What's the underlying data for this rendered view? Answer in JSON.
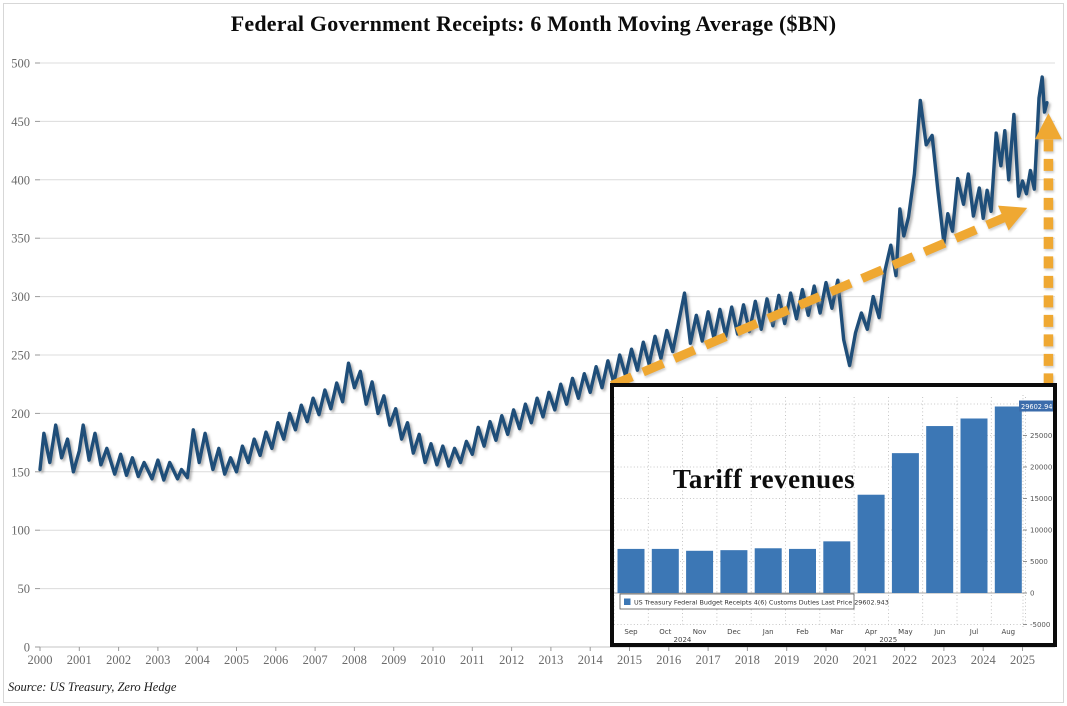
{
  "header": {
    "title": "Federal Government Receipts: 6 Month Moving Average ($BN)"
  },
  "source": {
    "label": "Source: US Treasury, Zero Hedge"
  },
  "colors": {
    "line": "#1f4e79",
    "arrow": "#efa832",
    "bar": "#3c77b5",
    "grid_main": "#dcdcdc",
    "grid_inset": "#b5b5b5",
    "axis_text": "#6a6a6a",
    "badge_bg": "#3b6cab",
    "badge_text": "#ffffff"
  },
  "chart_data": [
    {
      "type": "line",
      "title": "Federal Government Receipts: 6 Month Moving Average ($BN)",
      "xlabel": "",
      "ylabel": "",
      "ylim": [
        0,
        500
      ],
      "yticks": [
        0,
        50,
        100,
        150,
        200,
        250,
        300,
        350,
        400,
        450,
        500
      ],
      "xticks": [
        2000,
        2001,
        2002,
        2003,
        2004,
        2005,
        2006,
        2007,
        2008,
        2009,
        2010,
        2011,
        2012,
        2013,
        2014,
        2015,
        2016,
        2017,
        2018,
        2019,
        2020,
        2021,
        2022,
        2023,
        2024,
        2025
      ],
      "grid": "horizontal",
      "legend_position": "none",
      "series": [
        {
          "name": "receipts_6m_moving_avg",
          "color": "#1f4e79",
          "points": [
            [
              2000.0,
              152
            ],
            [
              2000.1,
              183
            ],
            [
              2000.25,
              158
            ],
            [
              2000.4,
              190
            ],
            [
              2000.55,
              162
            ],
            [
              2000.7,
              178
            ],
            [
              2000.85,
              150
            ],
            [
              2001.0,
              168
            ],
            [
              2001.1,
              190
            ],
            [
              2001.25,
              160
            ],
            [
              2001.4,
              183
            ],
            [
              2001.55,
              156
            ],
            [
              2001.7,
              170
            ],
            [
              2001.9,
              148
            ],
            [
              2002.05,
              165
            ],
            [
              2002.2,
              147
            ],
            [
              2002.35,
              162
            ],
            [
              2002.5,
              146
            ],
            [
              2002.65,
              158
            ],
            [
              2002.85,
              144
            ],
            [
              2003.0,
              160
            ],
            [
              2003.15,
              143
            ],
            [
              2003.3,
              158
            ],
            [
              2003.5,
              144
            ],
            [
              2003.6,
              152
            ],
            [
              2003.75,
              145
            ],
            [
              2003.9,
              186
            ],
            [
              2004.05,
              158
            ],
            [
              2004.2,
              183
            ],
            [
              2004.4,
              152
            ],
            [
              2004.55,
              170
            ],
            [
              2004.7,
              148
            ],
            [
              2004.85,
              162
            ],
            [
              2005.0,
              150
            ],
            [
              2005.15,
              172
            ],
            [
              2005.3,
              158
            ],
            [
              2005.45,
              178
            ],
            [
              2005.6,
              164
            ],
            [
              2005.75,
              184
            ],
            [
              2005.9,
              170
            ],
            [
              2006.05,
              192
            ],
            [
              2006.2,
              178
            ],
            [
              2006.35,
              200
            ],
            [
              2006.5,
              186
            ],
            [
              2006.65,
              207
            ],
            [
              2006.8,
              193
            ],
            [
              2006.95,
              213
            ],
            [
              2007.1,
              199
            ],
            [
              2007.25,
              220
            ],
            [
              2007.4,
              204
            ],
            [
              2007.55,
              226
            ],
            [
              2007.7,
              210
            ],
            [
              2007.85,
              243
            ],
            [
              2008.0,
              222
            ],
            [
              2008.15,
              236
            ],
            [
              2008.3,
              208
            ],
            [
              2008.45,
              227
            ],
            [
              2008.6,
              200
            ],
            [
              2008.75,
              215
            ],
            [
              2008.9,
              190
            ],
            [
              2009.05,
              204
            ],
            [
              2009.2,
              178
            ],
            [
              2009.35,
              192
            ],
            [
              2009.5,
              166
            ],
            [
              2009.65,
              182
            ],
            [
              2009.8,
              158
            ],
            [
              2009.95,
              174
            ],
            [
              2010.1,
              156
            ],
            [
              2010.25,
              172
            ],
            [
              2010.4,
              155
            ],
            [
              2010.55,
              170
            ],
            [
              2010.7,
              158
            ],
            [
              2010.85,
              176
            ],
            [
              2011.0,
              165
            ],
            [
              2011.15,
              188
            ],
            [
              2011.3,
              172
            ],
            [
              2011.45,
              193
            ],
            [
              2011.6,
              177
            ],
            [
              2011.75,
              198
            ],
            [
              2011.9,
              182
            ],
            [
              2012.05,
              203
            ],
            [
              2012.2,
              187
            ],
            [
              2012.35,
              208
            ],
            [
              2012.5,
              192
            ],
            [
              2012.65,
              213
            ],
            [
              2012.8,
              197
            ],
            [
              2012.95,
              218
            ],
            [
              2013.1,
              203
            ],
            [
              2013.25,
              225
            ],
            [
              2013.4,
              208
            ],
            [
              2013.55,
              230
            ],
            [
              2013.7,
              213
            ],
            [
              2013.85,
              234
            ],
            [
              2014.0,
              218
            ],
            [
              2014.15,
              240
            ],
            [
              2014.3,
              222
            ],
            [
              2014.45,
              245
            ],
            [
              2014.6,
              226
            ],
            [
              2014.75,
              250
            ],
            [
              2014.9,
              232
            ],
            [
              2015.05,
              255
            ],
            [
              2015.2,
              237
            ],
            [
              2015.35,
              261
            ],
            [
              2015.5,
              242
            ],
            [
              2015.65,
              266
            ],
            [
              2015.8,
              247
            ],
            [
              2015.95,
              271
            ],
            [
              2016.1,
              253
            ],
            [
              2016.25,
              278
            ],
            [
              2016.4,
              303
            ],
            [
              2016.55,
              260
            ],
            [
              2016.7,
              284
            ],
            [
              2016.85,
              262
            ],
            [
              2017.0,
              287
            ],
            [
              2017.15,
              264
            ],
            [
              2017.3,
              289
            ],
            [
              2017.45,
              266
            ],
            [
              2017.6,
              291
            ],
            [
              2017.75,
              268
            ],
            [
              2017.9,
              293
            ],
            [
              2018.05,
              270
            ],
            [
              2018.2,
              296
            ],
            [
              2018.35,
              272
            ],
            [
              2018.5,
              298
            ],
            [
              2018.65,
              275
            ],
            [
              2018.8,
              301
            ],
            [
              2018.95,
              277
            ],
            [
              2019.1,
              303
            ],
            [
              2019.25,
              281
            ],
            [
              2019.4,
              306
            ],
            [
              2019.55,
              284
            ],
            [
              2019.7,
              309
            ],
            [
              2019.85,
              286
            ],
            [
              2020.0,
              312
            ],
            [
              2020.15,
              290
            ],
            [
              2020.3,
              314
            ],
            [
              2020.45,
              263
            ],
            [
              2020.6,
              241
            ],
            [
              2020.75,
              269
            ],
            [
              2020.9,
              286
            ],
            [
              2021.05,
              272
            ],
            [
              2021.2,
              300
            ],
            [
              2021.35,
              282
            ],
            [
              2021.5,
              322
            ],
            [
              2021.65,
              344
            ],
            [
              2021.78,
              318
            ],
            [
              2021.88,
              375
            ],
            [
              2021.98,
              352
            ],
            [
              2022.1,
              368
            ],
            [
              2022.25,
              405
            ],
            [
              2022.4,
              468
            ],
            [
              2022.55,
              430
            ],
            [
              2022.7,
              438
            ],
            [
              2022.85,
              390
            ],
            [
              2023.0,
              346
            ],
            [
              2023.1,
              371
            ],
            [
              2023.22,
              356
            ],
            [
              2023.35,
              401
            ],
            [
              2023.5,
              379
            ],
            [
              2023.62,
              405
            ],
            [
              2023.75,
              369
            ],
            [
              2023.9,
              393
            ],
            [
              2024.0,
              367
            ],
            [
              2024.1,
              391
            ],
            [
              2024.2,
              373
            ],
            [
              2024.33,
              440
            ],
            [
              2024.45,
              412
            ],
            [
              2024.55,
              442
            ],
            [
              2024.65,
              400
            ],
            [
              2024.78,
              456
            ],
            [
              2024.9,
              386
            ],
            [
              2025.0,
              399
            ],
            [
              2025.1,
              388
            ],
            [
              2025.2,
              408
            ],
            [
              2025.3,
              392
            ],
            [
              2025.42,
              470
            ],
            [
              2025.5,
              488
            ],
            [
              2025.56,
              458
            ],
            [
              2025.62,
              466
            ]
          ]
        }
      ],
      "annotations": [
        {
          "type": "dashed-arrow",
          "name": "trend-arrow",
          "from": [
            2014.55,
            224
          ],
          "to": [
            2025.12,
            376
          ],
          "color": "#efa832",
          "dash": "22 12",
          "width": 9
        },
        {
          "type": "dashed-arrow",
          "name": "surge-arrow",
          "from": [
            2025.66,
            224
          ],
          "to": [
            2025.66,
            457
          ],
          "color": "#efa832",
          "dash": "12 7.5",
          "width": 9.5
        }
      ]
    },
    {
      "type": "bar",
      "title": "Tariff revenues",
      "categories": [
        "Sep",
        "Oct",
        "Nov",
        "Dec",
        "Jan",
        "Feb",
        "Mar",
        "Apr",
        "May",
        "Jun",
        "Jul",
        "Aug"
      ],
      "values": [
        7000,
        7000,
        6700,
        6800,
        7100,
        7000,
        8200,
        15600,
        22200,
        26500,
        27700,
        29603
      ],
      "year_labels": [
        {
          "label": "2024",
          "from": 0,
          "to": 3
        },
        {
          "label": "2025",
          "from": 4,
          "to": 11
        }
      ],
      "ylim": [
        -5000,
        30000
      ],
      "yticks": [
        -5000,
        0,
        5000,
        10000,
        15000,
        20000,
        25000
      ],
      "yaxis_side": "right",
      "grid": "dotted-both",
      "bar_color": "#3c77b5",
      "legend": {
        "series_label": "US Treasury Federal Budget Receipts 4(6) Customs Duties",
        "last_price_label": "Last Price 29602.943"
      },
      "last_price": "29602.943"
    }
  ]
}
